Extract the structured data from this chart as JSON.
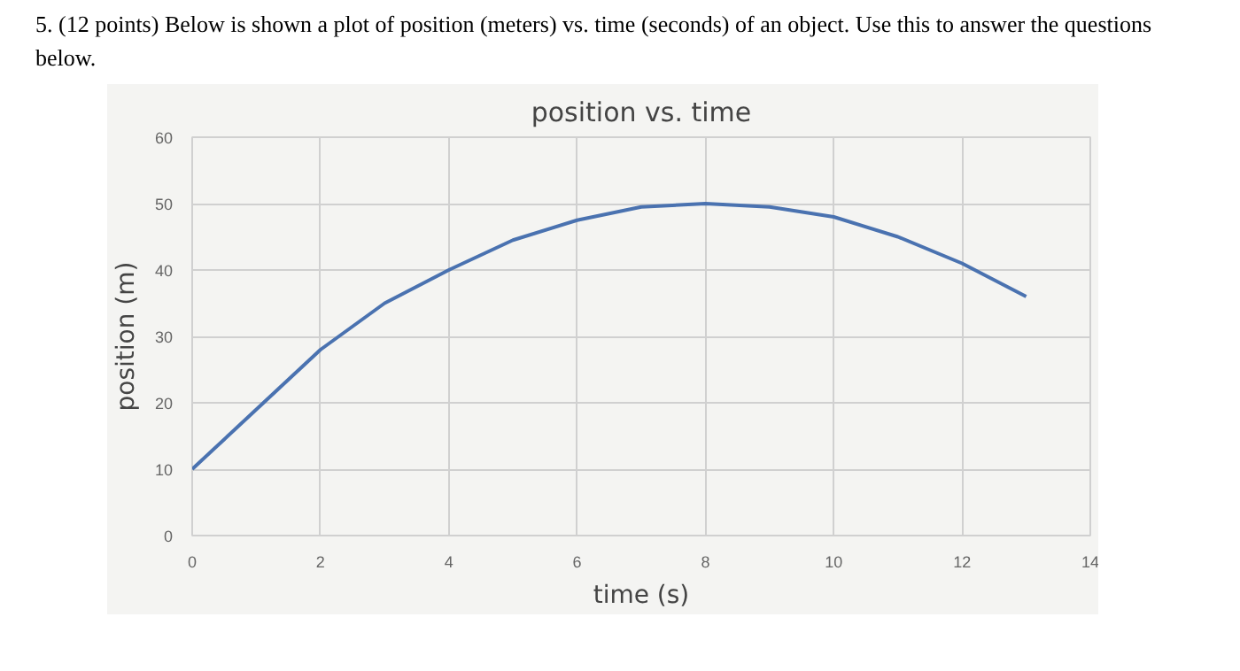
{
  "chart_data": {
    "type": "line",
    "title": "position vs. time",
    "xlabel": "time (s)",
    "ylabel": "position (m)",
    "annotations": [
      "5. (12 points) Below is shown a plot of position (meters) vs. time (seconds) of an object. Use this to answer the questions below."
    ],
    "x": [
      0,
      1,
      2,
      3,
      4,
      5,
      6,
      7,
      8,
      9,
      10,
      11,
      12,
      13
    ],
    "series": [
      {
        "color": "#4a72b0",
        "values": [
          10,
          19,
          28,
          35,
          40,
          44.5,
          47.5,
          49.5,
          50,
          49.5,
          48,
          45,
          41,
          36
        ]
      }
    ],
    "xlim": [
      0,
      14
    ],
    "ylim": [
      0,
      60
    ],
    "xticks": [
      0,
      2,
      4,
      6,
      8,
      10,
      12,
      14
    ],
    "yticks": [
      0,
      10,
      20,
      30,
      40,
      50,
      60
    ],
    "grid": true
  }
}
